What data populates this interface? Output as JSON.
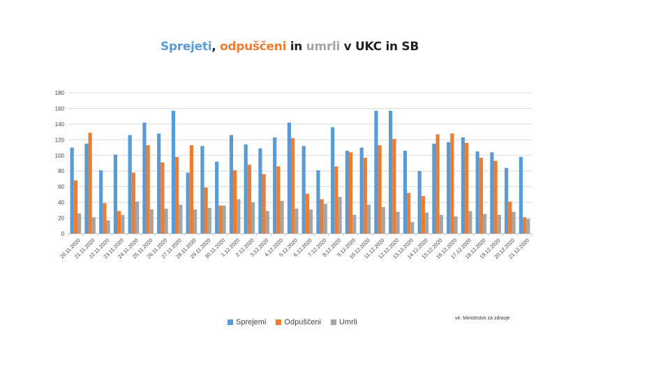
{
  "title": {
    "part1": "Sprejeti",
    "sep": ", ",
    "part2": "odpuščeni",
    "part3": " in ",
    "part4": "umrli",
    "part5": " v UKC in SB"
  },
  "source": "vir: Ministrstvo za zdravje",
  "chart_data": {
    "type": "bar",
    "title": "Sprejeti, odpuščeni in umrli v UKC in SB",
    "xlabel": "",
    "ylabel": "",
    "ylim": [
      0,
      180
    ],
    "yticks": [
      0,
      20,
      40,
      60,
      80,
      100,
      120,
      140,
      160,
      180
    ],
    "grid": true,
    "legend": "bottom",
    "categories": [
      "20.11.2020",
      "21.11.2020",
      "22.11.2020",
      "23.11.2020",
      "24.11.2020",
      "25.11.2020",
      "26.11.2020",
      "27.11.2020",
      "28.11.2020",
      "29.11.2020",
      "30.11.2020",
      "1.12.2020",
      "2.12.2020",
      "3.12.2020",
      "4.12.2020",
      "5.12.2020",
      "6.12.2020",
      "7.12.2020",
      "8.12.2020",
      "9.12.2020",
      "10.12.2020",
      "11.12.2020",
      "12.12.2020",
      "13.12.2020",
      "14.12.2020",
      "15.12.2020",
      "16.12.2020",
      "17.12.2020",
      "18.12.2020",
      "19.12.2020",
      "20.12.2020",
      "21.12.2020"
    ],
    "series": [
      {
        "name": "Sprejemi",
        "color": "#5b9bd5",
        "values": [
          110,
          115,
          81,
          101,
          126,
          142,
          128,
          157,
          78,
          112,
          92,
          126,
          114,
          109,
          123,
          142,
          112,
          81,
          136,
          106,
          110,
          157,
          157,
          106,
          80,
          115,
          117,
          123,
          105,
          104,
          84,
          98
        ]
      },
      {
        "name": "Odpuščeni",
        "color": "#ed7d31",
        "values": [
          68,
          129,
          39,
          29,
          78,
          113,
          91,
          98,
          113,
          59,
          36,
          81,
          88,
          76,
          86,
          122,
          51,
          44,
          86,
          104,
          97,
          113,
          121,
          52,
          48,
          127,
          128,
          116,
          97,
          93,
          41,
          21
        ]
      },
      {
        "name": "Umrli",
        "color": "#a5a5a5",
        "values": [
          26,
          21,
          17,
          24,
          41,
          31,
          32,
          37,
          31,
          33,
          36,
          44,
          40,
          29,
          42,
          32,
          31,
          38,
          47,
          24,
          37,
          34,
          28,
          15,
          27,
          24,
          22,
          29,
          25,
          24,
          28,
          19
        ]
      }
    ]
  }
}
